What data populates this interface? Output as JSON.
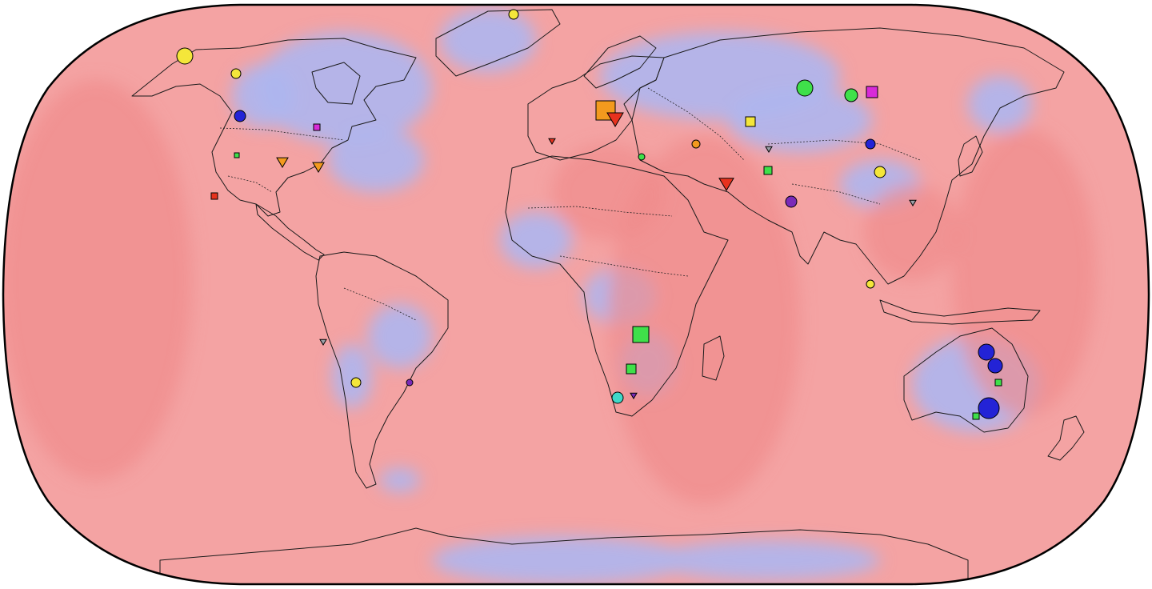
{
  "figure": {
    "type": "map",
    "projection": "Robinson",
    "field": {
      "palette": [
        "#2a3fd8",
        "#ffffff",
        "#f26a6a"
      ],
      "ocean_tone": "#f4a3a3",
      "warm_tone": "#ef8a8a",
      "cool_tone": "#aeb6f0"
    },
    "marker_palette": {
      "yellow": "#f4e63a",
      "orange": "#f39a1e",
      "red": "#e8321e",
      "green": "#3fe04a",
      "teal": "#3fd8c8",
      "blue": "#2323d6",
      "purple": "#7a2ab8",
      "magenta": "#d82ad8",
      "grey": "#9aa0a8"
    },
    "marker_shapes": [
      "circle",
      "square",
      "triangle-down"
    ]
  }
}
